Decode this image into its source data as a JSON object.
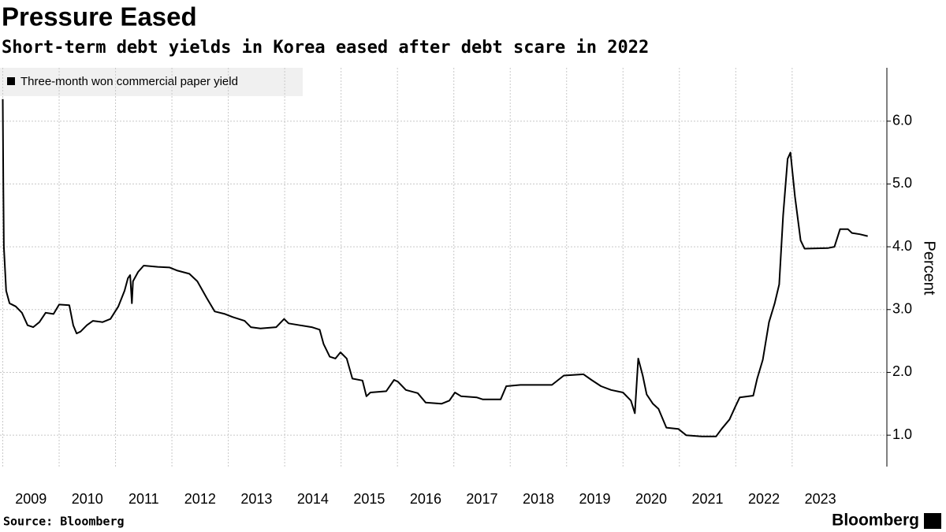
{
  "chart_data": {
    "type": "line",
    "title": "Pressure Eased",
    "subtitle": "Short-term debt yields in Korea eased after debt scare in 2022",
    "y_label": "Percent",
    "source": "Source: Bloomberg",
    "logo": "Bloomberg",
    "x": [
      2009.0,
      2009.01,
      2009.02,
      2009.06,
      2009.12,
      2009.23,
      2009.34,
      2009.44,
      2009.54,
      2009.65,
      2009.76,
      2009.9,
      2010.0,
      2010.18,
      2010.25,
      2010.31,
      2010.38,
      2010.49,
      2010.6,
      2010.77,
      2010.91,
      2011.05,
      2011.16,
      2011.22,
      2011.26,
      2011.29,
      2011.31,
      2011.4,
      2011.5,
      2011.75,
      2011.96,
      2012.1,
      2012.31,
      2012.45,
      2012.62,
      2012.76,
      2012.94,
      2013.08,
      2013.29,
      2013.4,
      2013.57,
      2013.85,
      2013.99,
      2014.07,
      2014.27,
      2014.48,
      2014.62,
      2014.69,
      2014.8,
      2014.9,
      2014.99,
      2015.1,
      2015.2,
      2015.38,
      2015.45,
      2015.52,
      2015.8,
      2015.94,
      2016.01,
      2016.15,
      2016.36,
      2016.5,
      2016.78,
      2016.92,
      2017.02,
      2017.13,
      2017.41,
      2017.51,
      2017.83,
      2017.93,
      2018.18,
      2018.74,
      2018.95,
      2019.3,
      2019.44,
      2019.61,
      2019.79,
      2020.0,
      2020.14,
      2020.21,
      2020.27,
      2020.35,
      2020.42,
      2020.53,
      2020.63,
      2020.77,
      2020.98,
      2021.12,
      2021.4,
      2021.65,
      2021.75,
      2021.89,
      2021.99,
      2022.07,
      2022.31,
      2022.38,
      2022.48,
      2022.59,
      2022.69,
      2022.77,
      2022.84,
      2022.92,
      2022.97,
      2023.05,
      2023.15,
      2023.22,
      2023.64,
      2023.75,
      2023.85,
      2023.99,
      2024.06,
      2024.2,
      2024.34
    ],
    "series": [
      {
        "name": "Three-month won commercial paper yield",
        "color": "#000000",
        "values": [
          6.35,
          5.0,
          4.0,
          3.3,
          3.1,
          3.05,
          2.95,
          2.75,
          2.72,
          2.8,
          2.95,
          2.93,
          3.08,
          3.07,
          2.75,
          2.62,
          2.65,
          2.75,
          2.82,
          2.8,
          2.85,
          3.05,
          3.3,
          3.5,
          3.55,
          3.1,
          3.45,
          3.6,
          3.7,
          3.68,
          3.67,
          3.62,
          3.57,
          3.45,
          3.18,
          2.97,
          2.93,
          2.88,
          2.82,
          2.72,
          2.7,
          2.72,
          2.85,
          2.78,
          2.75,
          2.72,
          2.68,
          2.45,
          2.25,
          2.22,
          2.32,
          2.22,
          1.9,
          1.87,
          1.62,
          1.68,
          1.7,
          1.88,
          1.85,
          1.72,
          1.67,
          1.52,
          1.5,
          1.55,
          1.68,
          1.62,
          1.6,
          1.57,
          1.57,
          1.78,
          1.8,
          1.8,
          1.95,
          1.97,
          1.88,
          1.78,
          1.72,
          1.68,
          1.55,
          1.35,
          2.22,
          1.95,
          1.65,
          1.5,
          1.42,
          1.12,
          1.1,
          1.0,
          0.98,
          0.98,
          1.1,
          1.25,
          1.45,
          1.6,
          1.63,
          1.9,
          2.2,
          2.8,
          3.1,
          3.4,
          4.5,
          5.4,
          5.5,
          4.8,
          4.1,
          3.97,
          3.98,
          4.0,
          4.28,
          4.28,
          4.22,
          4.2,
          4.17
        ]
      }
    ],
    "xlim": [
      2009,
      2024.68
    ],
    "xticks": [
      2009,
      2010,
      2011,
      2012,
      2013,
      2014,
      2015,
      2016,
      2017,
      2018,
      2019,
      2020,
      2021,
      2022,
      2023
    ],
    "ylim": [
      0.5,
      6.85
    ],
    "yticks": [
      {
        "value": 1,
        "label": "1.0"
      },
      {
        "value": 2,
        "label": "2.0"
      },
      {
        "value": 3,
        "label": "3.0"
      },
      {
        "value": 4,
        "label": "4.0"
      },
      {
        "value": 5,
        "label": "5.0"
      },
      {
        "value": 6,
        "label": "6.0"
      }
    ],
    "grid": true
  }
}
